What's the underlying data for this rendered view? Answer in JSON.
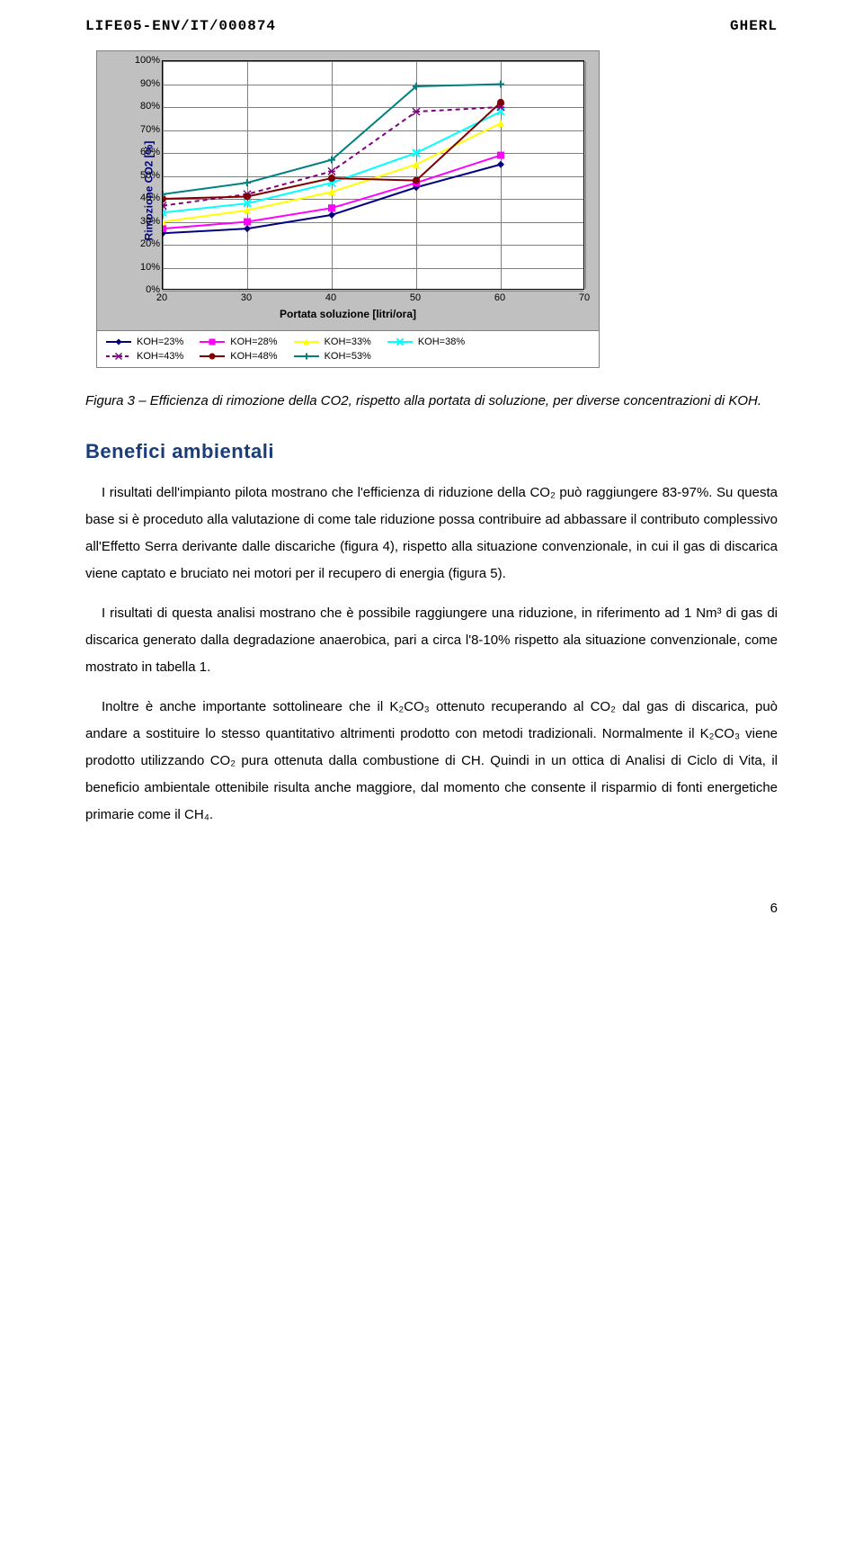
{
  "header": {
    "left": "LIFE05-ENV/IT/000874",
    "right": "GHERL"
  },
  "chart": {
    "type": "line",
    "ylabel": "Rimozione CO2 [%]",
    "xlabel": "Portata soluzione [litri/ora]",
    "xlim": [
      20,
      70
    ],
    "ylim": [
      0,
      100
    ],
    "xtick_step": 10,
    "ytick_step": 10,
    "ytick_suffix": "%",
    "plot_bg": "#ffffff",
    "panel_bg": "#c0c0c0",
    "grid_color": "#7f7f7f",
    "ylabel_color": "#000080",
    "series": [
      {
        "name": "KOH=23%",
        "color": "#000080",
        "marker": "diamond",
        "dash": "none",
        "x": [
          20,
          30,
          40,
          50,
          60
        ],
        "y": [
          25,
          27,
          33,
          45,
          55
        ]
      },
      {
        "name": "KOH=28%",
        "color": "#ff00ff",
        "marker": "square",
        "dash": "none",
        "x": [
          20,
          30,
          40,
          50,
          60
        ],
        "y": [
          27,
          30,
          36,
          47,
          59
        ]
      },
      {
        "name": "KOH=33%",
        "color": "#ffff00",
        "marker": "triangle",
        "dash": "none",
        "x": [
          20,
          30,
          40,
          50,
          60
        ],
        "y": [
          30,
          35,
          43,
          55,
          73
        ]
      },
      {
        "name": "KOH=38%",
        "color": "#00ffff",
        "marker": "x",
        "dash": "none",
        "x": [
          20,
          30,
          40,
          50,
          60
        ],
        "y": [
          34,
          38,
          47,
          60,
          78
        ]
      },
      {
        "name": "KOH=43%",
        "color": "#800080",
        "marker": "star",
        "dash": "dash",
        "x": [
          20,
          30,
          40,
          50,
          60
        ],
        "y": [
          37,
          42,
          52,
          78,
          80
        ]
      },
      {
        "name": "KOH=48%",
        "color": "#800000",
        "marker": "circle",
        "dash": "none",
        "x": [
          20,
          30,
          40,
          50,
          60
        ],
        "y": [
          40,
          41,
          49,
          48,
          82
        ]
      },
      {
        "name": "KOH=53%",
        "color": "#008080",
        "marker": "plus",
        "dash": "none",
        "x": [
          20,
          30,
          40,
          50,
          60
        ],
        "y": [
          42,
          47,
          57,
          89,
          90
        ]
      }
    ]
  },
  "caption": "Figura 3 – Efficienza di rimozione della CO2, rispetto alla portata di soluzione, per diverse concentrazioni di KOH.",
  "section_title": "Benefici ambientali",
  "paragraphs": [
    "I risultati dell'impianto pilota mostrano che l'efficienza di riduzione della CO₂ può raggiungere 83-97%. Su questa base si è proceduto alla valutazione di come tale riduzione possa contribuire ad abbassare il contributo complessivo all'Effetto Serra derivante dalle discariche (figura 4), rispetto alla situazione convenzionale, in cui il gas di discarica viene captato e bruciato nei motori per il recupero di energia (figura 5).",
    "I risultati di questa analisi mostrano che è possibile raggiungere una riduzione, in riferimento ad 1 Nm³ di gas di discarica generato dalla degradazione anaerobica, pari a circa l'8-10% rispetto ala situazione convenzionale, come mostrato in tabella 1.",
    "Inoltre è anche importante sottolineare che il K₂CO₃ ottenuto recuperando al CO₂ dal gas di discarica, può andare a sostituire lo stesso quantitativo altrimenti prodotto con metodi tradizionali. Normalmente il K₂CO₃ viene prodotto utilizzando CO₂ pura ottenuta dalla combustione di CH. Quindi in un ottica di Analisi di Ciclo di Vita, il beneficio ambientale ottenibile risulta anche maggiore, dal momento che consente il risparmio di fonti energetiche primarie come il CH₄."
  ],
  "page_number": "6"
}
